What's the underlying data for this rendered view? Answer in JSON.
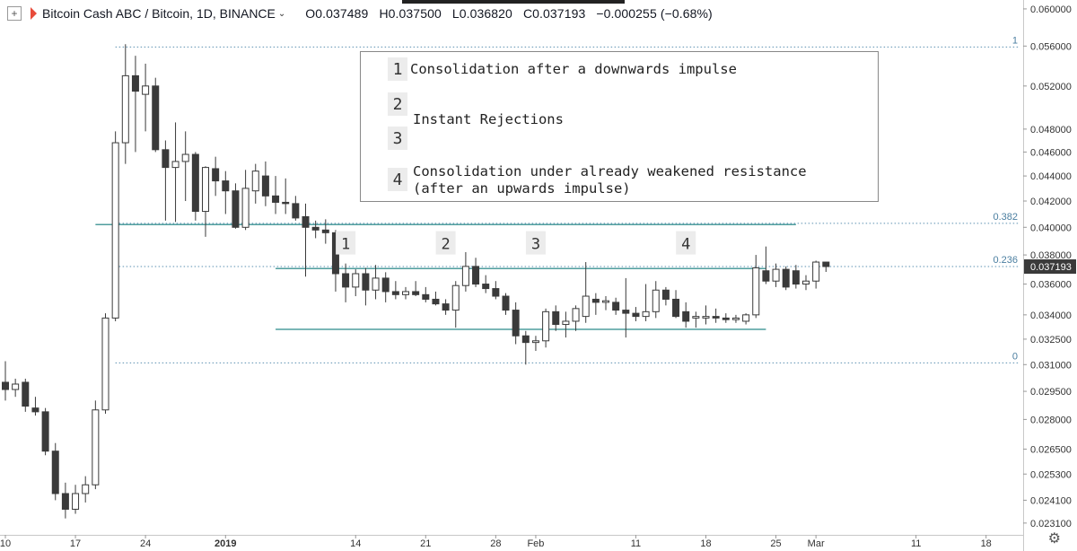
{
  "header": {
    "symbol": "Bitcoin Cash ABC / Bitcoin, 1D, BINANCE",
    "open": "O0.037489",
    "high": "H0.037500",
    "low": "L0.036820",
    "close": "C0.037193",
    "change": "−0.000255 (−0.68%)"
  },
  "annotation_box": {
    "items": [
      {
        "num": "1",
        "text": "Consolidation after a downwards impulse"
      },
      {
        "num": "2",
        "text": ""
      },
      {
        "num": "",
        "text": "Instant Rejections"
      },
      {
        "num": "3",
        "text": ""
      },
      {
        "num": "4",
        "text": "Consolidation under already weakened resistance"
      },
      {
        "num": "",
        "text": "(after an upwards impulse)"
      }
    ]
  },
  "fib_levels": [
    {
      "label": "1",
      "value": 0.0559
    },
    {
      "label": "0.382",
      "value": 0.0403
    },
    {
      "label": "0.236",
      "value": 0.03719
    },
    {
      "label": "0",
      "value": 0.0311
    }
  ],
  "price_tag": "0.037193",
  "colors": {
    "bull": "#ffffff",
    "bear": "#3a3a3a",
    "wick": "#3a3a3a",
    "zone_line": "#4f9e9e",
    "fib_line": "#5a8fb0",
    "tag_bg": "#3a3a3a"
  },
  "chart_data": {
    "type": "candlestick",
    "y_scale": "log",
    "ylim": [
      0.0226,
      0.061
    ],
    "y_ticks": [
      "0.060000",
      "0.056000",
      "0.052000",
      "0.048000",
      "0.046000",
      "0.044000",
      "0.042000",
      "0.040000",
      "0.038000",
      "0.036000",
      "0.034000",
      "0.032500",
      "0.031000",
      "0.029500",
      "0.028000",
      "0.026500",
      "0.025300",
      "0.024100",
      "0.023100"
    ],
    "x_tick_labels": [
      "10",
      "17",
      "24",
      "2019",
      "14",
      "21",
      "28",
      "Feb",
      "11",
      "18",
      "25",
      "Mar",
      "11",
      "18"
    ],
    "x_tick_dates": [
      "2018-12-10",
      "2018-12-17",
      "2018-12-24",
      "2019-01-01",
      "2019-01-14",
      "2019-01-21",
      "2019-01-28",
      "2019-02-01",
      "2019-02-11",
      "2019-02-18",
      "2019-02-25",
      "2019-03-01",
      "2019-03-11",
      "2019-03-18"
    ],
    "markers": [
      {
        "label": "1",
        "date": "2019-01-13",
        "value": 0.0388
      },
      {
        "label": "2",
        "date": "2019-01-23",
        "value": 0.0388
      },
      {
        "label": "3",
        "date": "2019-02-01",
        "value": 0.0388
      },
      {
        "label": "4",
        "date": "2019-02-16",
        "value": 0.0388
      }
    ],
    "zones": [
      {
        "from": "2018-12-19",
        "to": "2019-02-27",
        "value": 0.0402
      },
      {
        "from": "2019-01-06",
        "to": "2019-02-24",
        "value": 0.03705
      },
      {
        "from": "2019-01-06",
        "to": "2019-02-24",
        "value": 0.0331
      }
    ],
    "candles": [
      {
        "date": "2018-12-10",
        "o": 0.03,
        "h": 0.0312,
        "l": 0.029,
        "c": 0.0296
      },
      {
        "date": "2018-12-11",
        "o": 0.0296,
        "h": 0.0302,
        "l": 0.0292,
        "c": 0.0299
      },
      {
        "date": "2018-12-12",
        "o": 0.03,
        "h": 0.0302,
        "l": 0.0284,
        "c": 0.0287
      },
      {
        "date": "2018-12-13",
        "o": 0.0286,
        "h": 0.0292,
        "l": 0.0282,
        "c": 0.0284
      },
      {
        "date": "2018-12-14",
        "o": 0.0284,
        "h": 0.0286,
        "l": 0.0262,
        "c": 0.0264
      },
      {
        "date": "2018-12-15",
        "o": 0.0264,
        "h": 0.0268,
        "l": 0.0241,
        "c": 0.0244
      },
      {
        "date": "2018-12-16",
        "o": 0.0244,
        "h": 0.0249,
        "l": 0.0233,
        "c": 0.0237
      },
      {
        "date": "2018-12-17",
        "o": 0.0237,
        "h": 0.0248,
        "l": 0.0235,
        "c": 0.0244
      },
      {
        "date": "2018-12-18",
        "o": 0.0244,
        "h": 0.0252,
        "l": 0.024,
        "c": 0.0248
      },
      {
        "date": "2018-12-19",
        "o": 0.0248,
        "h": 0.029,
        "l": 0.0246,
        "c": 0.0285
      },
      {
        "date": "2018-12-20",
        "o": 0.0285,
        "h": 0.0341,
        "l": 0.0283,
        "c": 0.0338
      },
      {
        "date": "2018-12-21",
        "o": 0.0338,
        "h": 0.0478,
        "l": 0.0336,
        "c": 0.0468
      },
      {
        "date": "2018-12-22",
        "o": 0.0468,
        "h": 0.0562,
        "l": 0.045,
        "c": 0.053
      },
      {
        "date": "2018-12-23",
        "o": 0.053,
        "h": 0.055,
        "l": 0.046,
        "c": 0.0515
      },
      {
        "date": "2018-12-24",
        "o": 0.0512,
        "h": 0.0542,
        "l": 0.0478,
        "c": 0.052
      },
      {
        "date": "2018-12-25",
        "o": 0.052,
        "h": 0.0528,
        "l": 0.046,
        "c": 0.0462
      },
      {
        "date": "2018-12-26",
        "o": 0.0462,
        "h": 0.047,
        "l": 0.0405,
        "c": 0.0447
      },
      {
        "date": "2018-12-27",
        "o": 0.0447,
        "h": 0.0486,
        "l": 0.0404,
        "c": 0.0452
      },
      {
        "date": "2018-12-28",
        "o": 0.0452,
        "h": 0.0478,
        "l": 0.042,
        "c": 0.0458
      },
      {
        "date": "2018-12-29",
        "o": 0.0458,
        "h": 0.046,
        "l": 0.0405,
        "c": 0.0412
      },
      {
        "date": "2018-12-30",
        "o": 0.0412,
        "h": 0.0448,
        "l": 0.0393,
        "c": 0.0447
      },
      {
        "date": "2018-12-31",
        "o": 0.0446,
        "h": 0.0456,
        "l": 0.0424,
        "c": 0.0436
      },
      {
        "date": "2019-01-01",
        "o": 0.0436,
        "h": 0.0444,
        "l": 0.041,
        "c": 0.0428
      },
      {
        "date": "2019-01-02",
        "o": 0.0428,
        "h": 0.0434,
        "l": 0.0399,
        "c": 0.04
      },
      {
        "date": "2019-01-03",
        "o": 0.04,
        "h": 0.0445,
        "l": 0.0398,
        "c": 0.043
      },
      {
        "date": "2019-01-04",
        "o": 0.0428,
        "h": 0.045,
        "l": 0.0418,
        "c": 0.0444
      },
      {
        "date": "2019-01-05",
        "o": 0.044,
        "h": 0.0452,
        "l": 0.0416,
        "c": 0.0424
      },
      {
        "date": "2019-01-06",
        "o": 0.0424,
        "h": 0.044,
        "l": 0.041,
        "c": 0.0419
      },
      {
        "date": "2019-01-07",
        "o": 0.0419,
        "h": 0.0438,
        "l": 0.041,
        "c": 0.0418
      },
      {
        "date": "2019-01-08",
        "o": 0.0418,
        "h": 0.0424,
        "l": 0.0405,
        "c": 0.0407
      },
      {
        "date": "2019-01-09",
        "o": 0.0408,
        "h": 0.0418,
        "l": 0.0365,
        "c": 0.04
      },
      {
        "date": "2019-01-10",
        "o": 0.04,
        "h": 0.0405,
        "l": 0.0392,
        "c": 0.0398
      },
      {
        "date": "2019-01-11",
        "o": 0.0398,
        "h": 0.0406,
        "l": 0.0388,
        "c": 0.0396
      },
      {
        "date": "2019-01-12",
        "o": 0.0396,
        "h": 0.0398,
        "l": 0.0355,
        "c": 0.0367
      },
      {
        "date": "2019-01-13",
        "o": 0.0367,
        "h": 0.0374,
        "l": 0.0348,
        "c": 0.0358
      },
      {
        "date": "2019-01-14",
        "o": 0.0358,
        "h": 0.037,
        "l": 0.0352,
        "c": 0.0367
      },
      {
        "date": "2019-01-15",
        "o": 0.0367,
        "h": 0.0371,
        "l": 0.0346,
        "c": 0.0356
      },
      {
        "date": "2019-01-16",
        "o": 0.0356,
        "h": 0.0373,
        "l": 0.035,
        "c": 0.0364
      },
      {
        "date": "2019-01-17",
        "o": 0.0364,
        "h": 0.0368,
        "l": 0.0348,
        "c": 0.0355
      },
      {
        "date": "2019-01-18",
        "o": 0.0355,
        "h": 0.0362,
        "l": 0.035,
        "c": 0.0353
      },
      {
        "date": "2019-01-19",
        "o": 0.0353,
        "h": 0.0358,
        "l": 0.035,
        "c": 0.0355
      },
      {
        "date": "2019-01-20",
        "o": 0.0355,
        "h": 0.0362,
        "l": 0.0352,
        "c": 0.0353
      },
      {
        "date": "2019-01-21",
        "o": 0.0353,
        "h": 0.0358,
        "l": 0.0348,
        "c": 0.035
      },
      {
        "date": "2019-01-22",
        "o": 0.035,
        "h": 0.0355,
        "l": 0.0346,
        "c": 0.0347
      },
      {
        "date": "2019-01-23",
        "o": 0.0347,
        "h": 0.035,
        "l": 0.034,
        "c": 0.0343
      },
      {
        "date": "2019-01-24",
        "o": 0.0343,
        "h": 0.0362,
        "l": 0.0332,
        "c": 0.0359
      },
      {
        "date": "2019-01-25",
        "o": 0.0359,
        "h": 0.0382,
        "l": 0.0355,
        "c": 0.0372
      },
      {
        "date": "2019-01-26",
        "o": 0.0372,
        "h": 0.0378,
        "l": 0.0358,
        "c": 0.036
      },
      {
        "date": "2019-01-27",
        "o": 0.036,
        "h": 0.0366,
        "l": 0.0354,
        "c": 0.0357
      },
      {
        "date": "2019-01-28",
        "o": 0.0357,
        "h": 0.0362,
        "l": 0.035,
        "c": 0.0352
      },
      {
        "date": "2019-01-29",
        "o": 0.0352,
        "h": 0.0354,
        "l": 0.034,
        "c": 0.0343
      },
      {
        "date": "2019-01-30",
        "o": 0.0343,
        "h": 0.0348,
        "l": 0.0322,
        "c": 0.0327
      },
      {
        "date": "2019-01-31",
        "o": 0.0327,
        "h": 0.033,
        "l": 0.031,
        "c": 0.0323
      },
      {
        "date": "2019-02-01",
        "o": 0.0323,
        "h": 0.0327,
        "l": 0.0318,
        "c": 0.0324
      },
      {
        "date": "2019-02-02",
        "o": 0.0324,
        "h": 0.0344,
        "l": 0.032,
        "c": 0.0342
      },
      {
        "date": "2019-02-03",
        "o": 0.0342,
        "h": 0.0346,
        "l": 0.033,
        "c": 0.0334
      },
      {
        "date": "2019-02-04",
        "o": 0.0334,
        "h": 0.0342,
        "l": 0.0326,
        "c": 0.0336
      },
      {
        "date": "2019-02-05",
        "o": 0.0336,
        "h": 0.0346,
        "l": 0.033,
        "c": 0.0344
      },
      {
        "date": "2019-02-06",
        "o": 0.0339,
        "h": 0.0375,
        "l": 0.0335,
        "c": 0.0352
      },
      {
        "date": "2019-02-07",
        "o": 0.035,
        "h": 0.0354,
        "l": 0.034,
        "c": 0.0348
      },
      {
        "date": "2019-02-08",
        "o": 0.0348,
        "h": 0.0352,
        "l": 0.0343,
        "c": 0.0349
      },
      {
        "date": "2019-02-09",
        "o": 0.0348,
        "h": 0.0351,
        "l": 0.034,
        "c": 0.0343
      },
      {
        "date": "2019-02-10",
        "o": 0.0343,
        "h": 0.0364,
        "l": 0.0326,
        "c": 0.0341
      },
      {
        "date": "2019-02-11",
        "o": 0.0341,
        "h": 0.0345,
        "l": 0.0336,
        "c": 0.0339
      },
      {
        "date": "2019-02-12",
        "o": 0.0339,
        "h": 0.036,
        "l": 0.0336,
        "c": 0.0342
      },
      {
        "date": "2019-02-13",
        "o": 0.0342,
        "h": 0.0362,
        "l": 0.0338,
        "c": 0.0356
      },
      {
        "date": "2019-02-14",
        "o": 0.0356,
        "h": 0.0358,
        "l": 0.0346,
        "c": 0.035
      },
      {
        "date": "2019-02-15",
        "o": 0.035,
        "h": 0.0356,
        "l": 0.0338,
        "c": 0.0339
      },
      {
        "date": "2019-02-16",
        "o": 0.0342,
        "h": 0.0348,
        "l": 0.0332,
        "c": 0.0336
      },
      {
        "date": "2019-02-17",
        "o": 0.0338,
        "h": 0.0342,
        "l": 0.0332,
        "c": 0.0339
      },
      {
        "date": "2019-02-18",
        "o": 0.0338,
        "h": 0.0346,
        "l": 0.0334,
        "c": 0.0339
      },
      {
        "date": "2019-02-19",
        "o": 0.0339,
        "h": 0.0344,
        "l": 0.0335,
        "c": 0.0338
      },
      {
        "date": "2019-02-20",
        "o": 0.0338,
        "h": 0.0341,
        "l": 0.0335,
        "c": 0.0337
      },
      {
        "date": "2019-02-21",
        "o": 0.0337,
        "h": 0.034,
        "l": 0.0335,
        "c": 0.0338
      },
      {
        "date": "2019-02-22",
        "o": 0.0336,
        "h": 0.0341,
        "l": 0.0334,
        "c": 0.034
      },
      {
        "date": "2019-02-23",
        "o": 0.034,
        "h": 0.038,
        "l": 0.0338,
        "c": 0.0371
      },
      {
        "date": "2019-02-24",
        "o": 0.0369,
        "h": 0.0386,
        "l": 0.036,
        "c": 0.0362
      },
      {
        "date": "2019-02-25",
        "o": 0.0362,
        "h": 0.0374,
        "l": 0.0358,
        "c": 0.037
      },
      {
        "date": "2019-02-26",
        "o": 0.037,
        "h": 0.0372,
        "l": 0.0356,
        "c": 0.0358
      },
      {
        "date": "2019-02-27",
        "o": 0.0369,
        "h": 0.0373,
        "l": 0.0357,
        "c": 0.036
      },
      {
        "date": "2019-02-28",
        "o": 0.036,
        "h": 0.0366,
        "l": 0.0356,
        "c": 0.0362
      },
      {
        "date": "2019-03-01",
        "o": 0.0362,
        "h": 0.0376,
        "l": 0.0357,
        "c": 0.0375
      },
      {
        "date": "2019-03-02",
        "o": 0.0375,
        "h": 0.0375,
        "l": 0.03682,
        "c": 0.03719
      }
    ]
  }
}
